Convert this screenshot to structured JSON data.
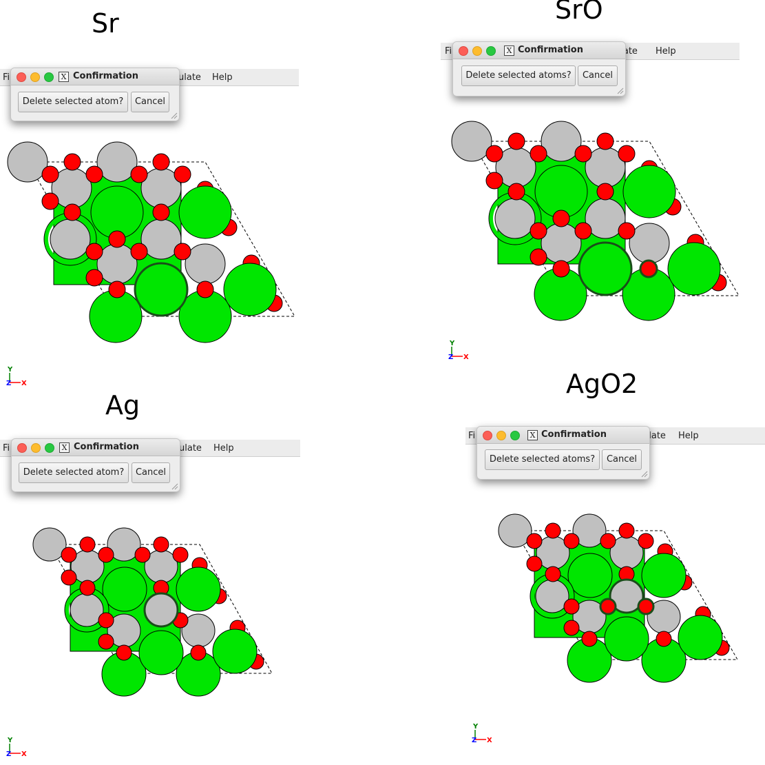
{
  "panels": [
    {
      "id": "sr",
      "title": "Sr",
      "menu": {
        "left": "Fi",
        "calc": "ulate",
        "help": "Help"
      },
      "dialog": {
        "title": "Confirmation",
        "confirm_label": "Delete selected atom?",
        "cancel_label": "Cancel"
      },
      "axes": {
        "y": "Y",
        "z": "Z",
        "x": "X"
      }
    },
    {
      "id": "sro",
      "title": "SrO",
      "menu": {
        "left": "Fi",
        "calc": "ulate",
        "help": "Help"
      },
      "dialog": {
        "title": "Confirmation",
        "confirm_label": "Delete selected atoms?",
        "cancel_label": "Cancel"
      },
      "axes": {
        "y": "Y",
        "z": "Z",
        "x": "X"
      }
    },
    {
      "id": "ag",
      "title": "Ag",
      "menu": {
        "left": "Fi",
        "calc": "ulate",
        "help": "Help"
      },
      "dialog": {
        "title": "Confirmation",
        "confirm_label": "Delete selected atom?",
        "cancel_label": "Cancel"
      },
      "axes": {
        "y": "Y",
        "z": "Z",
        "x": "X"
      }
    },
    {
      "id": "ago2",
      "title": "AgO2",
      "menu": {
        "left": "Fi",
        "calc": "ulate",
        "help": "Help"
      },
      "dialog": {
        "title": "Confirmation",
        "confirm_label": "Delete selected atoms?",
        "cancel_label": "Cancel"
      },
      "axes": {
        "y": "Y",
        "z": "Z",
        "x": "X"
      }
    }
  ],
  "colors": {
    "strontium": "#00e600",
    "silver": "#c0c0c0",
    "oxygen": "#ff0000",
    "axis_y": "#008000",
    "axis_z": "#0000ff",
    "axis_x": "#ff0000",
    "cell_line": "#000000"
  },
  "icons": [
    "close-icon",
    "minimize-icon",
    "zoom-icon",
    "x11-icon",
    "resize-grip-icon"
  ]
}
